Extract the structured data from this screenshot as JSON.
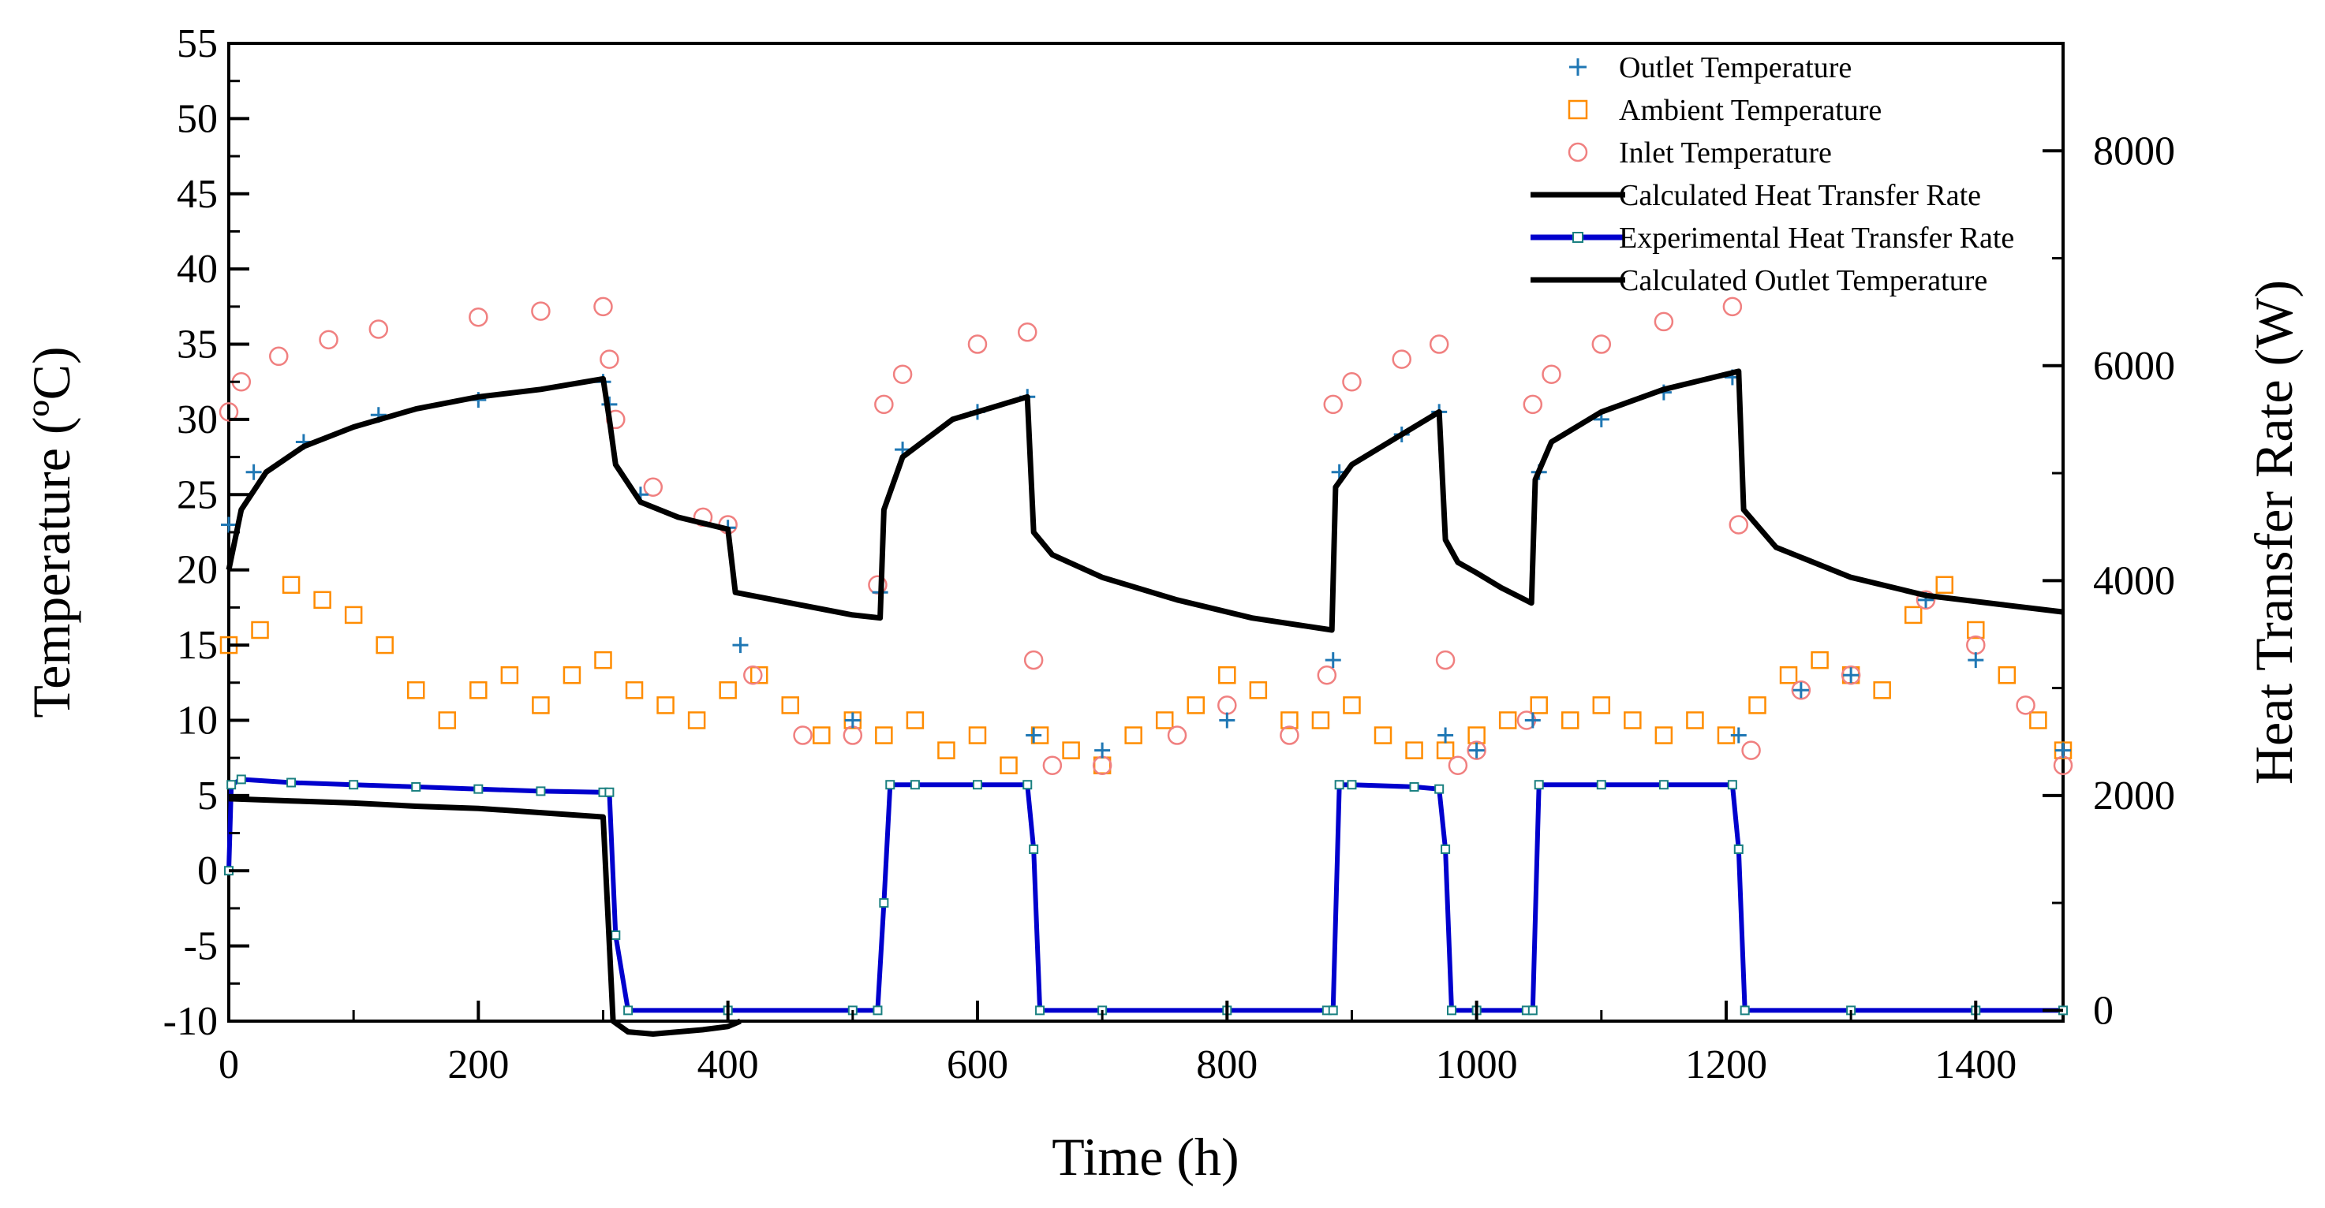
{
  "chart_data": {
    "type": "scatter",
    "xlabel": "Time (h)",
    "ylabel_left": "Temperature (ºC)",
    "ylabel_right": "Heat Transfer Rate (W)",
    "xlim": [
      0,
      1470
    ],
    "ylim_left": [
      -10,
      55
    ],
    "ylim_right": [
      -100,
      9000
    ],
    "x_ticks": [
      0,
      200,
      400,
      600,
      800,
      1000,
      1200,
      1400
    ],
    "y_left_ticks": [
      -10,
      -5,
      0,
      5,
      10,
      15,
      20,
      25,
      30,
      35,
      40,
      45,
      50,
      55
    ],
    "y_right_ticks": [
      0,
      2000,
      4000,
      6000,
      8000
    ],
    "legend_position": "top-right",
    "series": [
      {
        "name": "Outlet Temperature",
        "axis": "left",
        "marker": "+",
        "color": "#1f77b4",
        "x": [
          0,
          20,
          60,
          120,
          200,
          300,
          305,
          330,
          400,
          410,
          500,
          522,
          540,
          600,
          640,
          645,
          700,
          800,
          885,
          890,
          940,
          970,
          975,
          1000,
          1045,
          1050,
          1100,
          1150,
          1205,
          1210,
          1260,
          1300,
          1360,
          1400,
          1470
        ],
        "y": [
          23,
          26.5,
          28.5,
          30.3,
          31.3,
          32.5,
          31,
          25,
          22.8,
          15,
          10,
          18.5,
          28,
          30.5,
          31.5,
          9,
          8,
          10,
          14,
          26.5,
          29,
          30.5,
          9,
          8,
          10,
          26.5,
          30,
          31.8,
          32.8,
          9,
          12,
          13,
          18,
          14,
          8
        ]
      },
      {
        "name": "Ambient Temperature",
        "axis": "left",
        "marker": "square",
        "color": "#ff8c00",
        "x": [
          0,
          25,
          50,
          75,
          100,
          125,
          150,
          175,
          200,
          225,
          250,
          275,
          300,
          325,
          350,
          375,
          400,
          425,
          450,
          475,
          500,
          525,
          550,
          575,
          600,
          625,
          650,
          675,
          700,
          725,
          750,
          775,
          800,
          825,
          850,
          875,
          900,
          925,
          950,
          975,
          1000,
          1025,
          1050,
          1075,
          1100,
          1125,
          1150,
          1175,
          1200,
          1225,
          1250,
          1275,
          1300,
          1325,
          1350,
          1375,
          1400,
          1425,
          1450,
          1470
        ],
        "y": [
          15,
          16,
          19,
          18,
          17,
          15,
          12,
          10,
          12,
          13,
          11,
          13,
          14,
          12,
          11,
          10,
          12,
          13,
          11,
          9,
          10,
          9,
          10,
          8,
          9,
          7,
          9,
          8,
          7,
          9,
          10,
          11,
          13,
          12,
          10,
          10,
          11,
          9,
          8,
          8,
          9,
          10,
          11,
          10,
          11,
          10,
          9,
          10,
          9,
          11,
          13,
          14,
          13,
          12,
          17,
          19,
          16,
          13,
          10,
          8
        ]
      },
      {
        "name": "Inlet Temperature",
        "axis": "left",
        "marker": "circle",
        "color": "#f08080",
        "x": [
          0,
          10,
          40,
          80,
          120,
          200,
          250,
          300,
          305,
          310,
          340,
          380,
          400,
          420,
          460,
          500,
          520,
          525,
          540,
          600,
          640,
          645,
          660,
          700,
          760,
          800,
          850,
          880,
          885,
          900,
          940,
          970,
          975,
          985,
          1000,
          1040,
          1045,
          1060,
          1100,
          1150,
          1205,
          1210,
          1220,
          1260,
          1300,
          1360,
          1400,
          1440,
          1470
        ],
        "y": [
          30.5,
          32.5,
          34.2,
          35.3,
          36,
          36.8,
          37.2,
          37.5,
          34,
          30,
          25.5,
          23.5,
          23,
          13,
          9,
          9,
          19,
          31,
          33,
          35,
          35.8,
          14,
          7,
          7,
          9,
          11,
          9,
          13,
          31,
          32.5,
          34,
          35,
          14,
          7,
          8,
          10,
          31,
          33,
          35,
          36.5,
          37.5,
          23,
          8,
          12,
          13,
          18,
          15,
          11,
          7
        ]
      },
      {
        "name": "Calculated Heat Transfer Rate",
        "axis": "right",
        "marker": "line",
        "color": "#000000",
        "x": [
          0,
          50,
          100,
          150,
          200,
          250,
          300,
          308,
          320,
          340,
          360,
          380,
          400,
          410
        ],
        "y": [
          1970,
          1950,
          1930,
          1900,
          1880,
          1840,
          1800,
          -100,
          -200,
          -220,
          -200,
          -180,
          -150,
          -100
        ]
      },
      {
        "name": "Experimental Heat Transfer Rate",
        "axis": "right",
        "marker": "line-square",
        "color": "#0000cd",
        "x": [
          0,
          2,
          10,
          50,
          100,
          150,
          200,
          250,
          300,
          305,
          310,
          320,
          400,
          500,
          520,
          525,
          530,
          550,
          600,
          640,
          645,
          650,
          700,
          800,
          880,
          885,
          890,
          900,
          950,
          970,
          975,
          980,
          1000,
          1040,
          1045,
          1050,
          1100,
          1150,
          1205,
          1210,
          1215,
          1300,
          1400,
          1470
        ],
        "y": [
          1300,
          2100,
          2150,
          2120,
          2100,
          2080,
          2060,
          2040,
          2030,
          2030,
          700,
          0,
          0,
          0,
          0,
          1000,
          2100,
          2100,
          2100,
          2100,
          1500,
          0,
          0,
          0,
          0,
          0,
          2100,
          2100,
          2080,
          2060,
          1500,
          0,
          0,
          0,
          0,
          2100,
          2100,
          2100,
          2100,
          1500,
          0,
          0,
          0,
          0
        ]
      },
      {
        "name": "Calculated Outlet Temperature",
        "axis": "left",
        "marker": "line",
        "color": "#000000",
        "x": [
          0,
          10,
          30,
          60,
          100,
          150,
          200,
          250,
          300,
          305,
          310,
          330,
          360,
          400,
          406,
          450,
          500,
          522,
          525,
          540,
          580,
          620,
          640,
          645,
          660,
          700,
          760,
          820,
          884,
          887,
          900,
          940,
          970,
          975,
          985,
          1000,
          1020,
          1044,
          1047,
          1060,
          1100,
          1150,
          1200,
          1210,
          1214,
          1240,
          1300,
          1360,
          1420,
          1470
        ],
        "y": [
          20,
          24,
          26.5,
          28.2,
          29.5,
          30.7,
          31.5,
          32,
          32.7,
          30,
          27,
          24.5,
          23.5,
          22.7,
          18.5,
          17.8,
          17,
          16.8,
          24,
          27.5,
          30,
          31,
          31.5,
          22.5,
          21,
          19.5,
          18,
          16.8,
          16,
          25.5,
          27,
          29,
          30.5,
          22,
          20.5,
          19.8,
          18.8,
          17.8,
          26,
          28.5,
          30.5,
          32,
          33,
          33.2,
          24,
          21.5,
          19.5,
          18.3,
          17.7,
          17.2
        ]
      }
    ]
  }
}
